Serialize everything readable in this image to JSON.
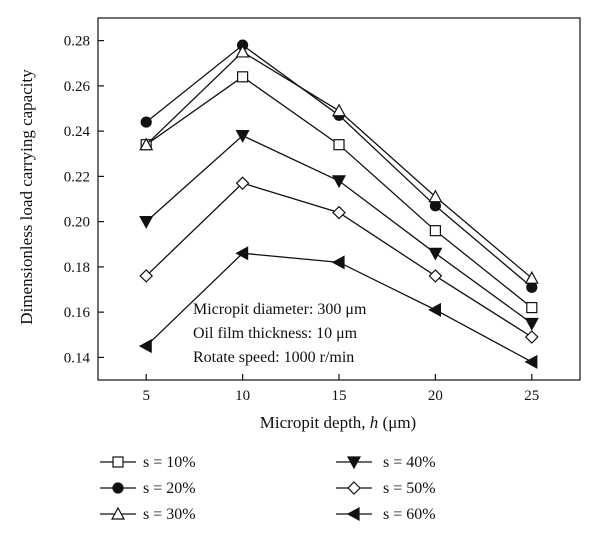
{
  "chart_data": {
    "type": "line",
    "x": [
      5,
      10,
      15,
      20,
      25
    ],
    "xlabel_prefix": "Micropit depth, ",
    "xlabel_var": "h",
    "xlabel_unit": " (μm)",
    "ylabel": "Dimensionless load carrying capacity",
    "xlim": [
      2.5,
      27.5
    ],
    "ylim": [
      0.13,
      0.29
    ],
    "xticks": [
      5,
      10,
      15,
      20,
      25
    ],
    "yticks": [
      0.14,
      0.16,
      0.18,
      0.2,
      0.22,
      0.24,
      0.26,
      0.28
    ],
    "ytick_labels": [
      "0.14",
      "0.16",
      "0.18",
      "0.20",
      "0.22",
      "0.24",
      "0.26",
      "0.28"
    ],
    "grid": false,
    "legend_placement": "below",
    "annotations": [
      "Micropit diameter: 300 μm",
      "Oil film thickness: 10 μm",
      "Rotate speed: 1000 r/min"
    ],
    "series": [
      {
        "name": "s = 10%",
        "marker": "square-open",
        "values": [
          0.234,
          0.264,
          0.234,
          0.196,
          0.162
        ]
      },
      {
        "name": "s = 20%",
        "marker": "circle-filled",
        "values": [
          0.244,
          0.278,
          0.247,
          0.207,
          0.171
        ]
      },
      {
        "name": "s = 30%",
        "marker": "triangle-up-open",
        "values": [
          0.234,
          0.275,
          0.249,
          0.211,
          0.175
        ]
      },
      {
        "name": "s = 40%",
        "marker": "triangle-down-filled",
        "values": [
          0.2,
          0.238,
          0.218,
          0.186,
          0.155
        ]
      },
      {
        "name": "s = 50%",
        "marker": "diamond-open",
        "values": [
          0.176,
          0.217,
          0.204,
          0.176,
          0.149
        ]
      },
      {
        "name": "s = 60%",
        "marker": "triangle-left-filled",
        "values": [
          0.145,
          0.186,
          0.182,
          0.161,
          0.138
        ]
      }
    ]
  }
}
